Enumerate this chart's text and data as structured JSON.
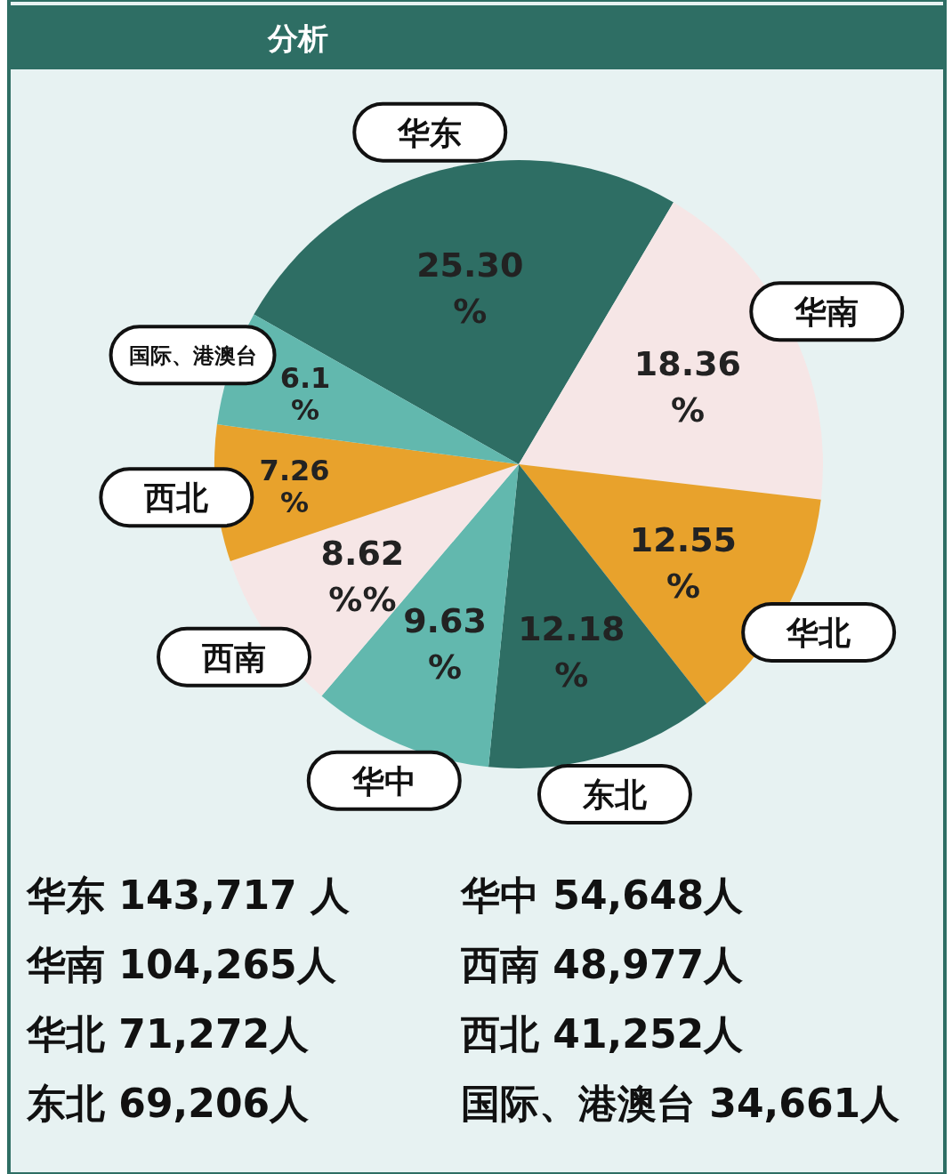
{
  "chart_data": {
    "type": "pie",
    "title": "分析",
    "categories": [
      "华东",
      "华南",
      "华北",
      "东北",
      "华中",
      "西南",
      "西北",
      "国际、港澳台"
    ],
    "values": [
      25.3,
      18.36,
      12.55,
      12.18,
      9.63,
      8.62,
      7.26,
      6.1
    ],
    "value_labels": [
      "25.30%",
      "18.36%",
      "12.55%",
      "12.18%",
      "9.63%",
      "8.62%%",
      "7.26%",
      "6.1%"
    ],
    "colors": [
      "#2e6e64",
      "#f6e6e6",
      "#e8a22c",
      "#2e6e64",
      "#62b8ae",
      "#f6e6e6",
      "#e8a22c",
      "#62b8ae"
    ],
    "annotations": [
      "华东  143,717 人",
      "华南  104,265人",
      "华北  71,272人",
      "东北  69,206人",
      "华中  54,648人",
      "西南  48,977人",
      "西北  41,252人",
      "国际、港澳台  34,661人"
    ]
  }
}
